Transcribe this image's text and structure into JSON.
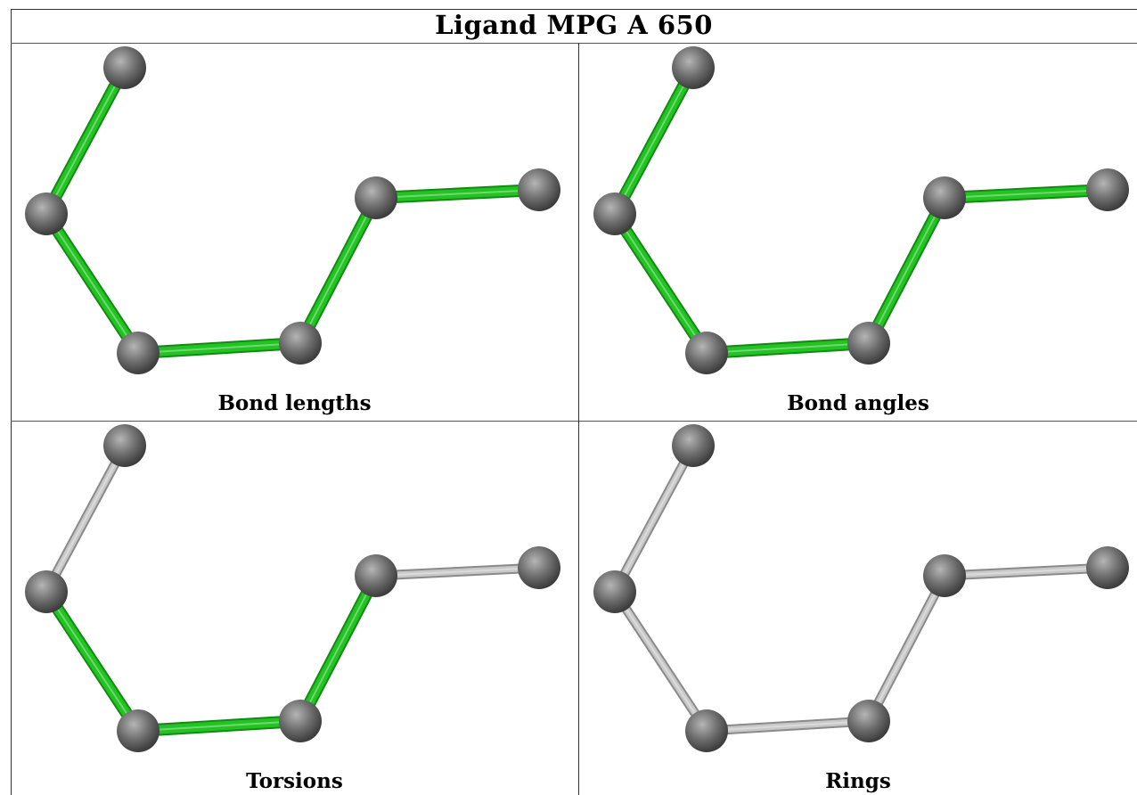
{
  "title": "Ligand MPG A 650",
  "colors": {
    "highlight_bond": "#22c322",
    "highlight_bond_dark": "#138a13",
    "normal_bond": "#c8c8c8",
    "normal_bond_dark": "#8a8a8a",
    "atom": "#6e6e6e",
    "atom_light": "#b5b5b5",
    "atom_dark": "#3c3c3c"
  },
  "panels": [
    {
      "caption": "Bond lengths",
      "bond_highlight": [
        true,
        true,
        true,
        true,
        true
      ]
    },
    {
      "caption": "Bond angles",
      "bond_highlight": [
        true,
        true,
        true,
        true,
        true
      ]
    },
    {
      "caption": "Torsions",
      "bond_highlight": [
        false,
        true,
        true,
        true,
        false
      ]
    },
    {
      "caption": "Rings",
      "bond_highlight": [
        false,
        false,
        false,
        false,
        false
      ]
    }
  ]
}
